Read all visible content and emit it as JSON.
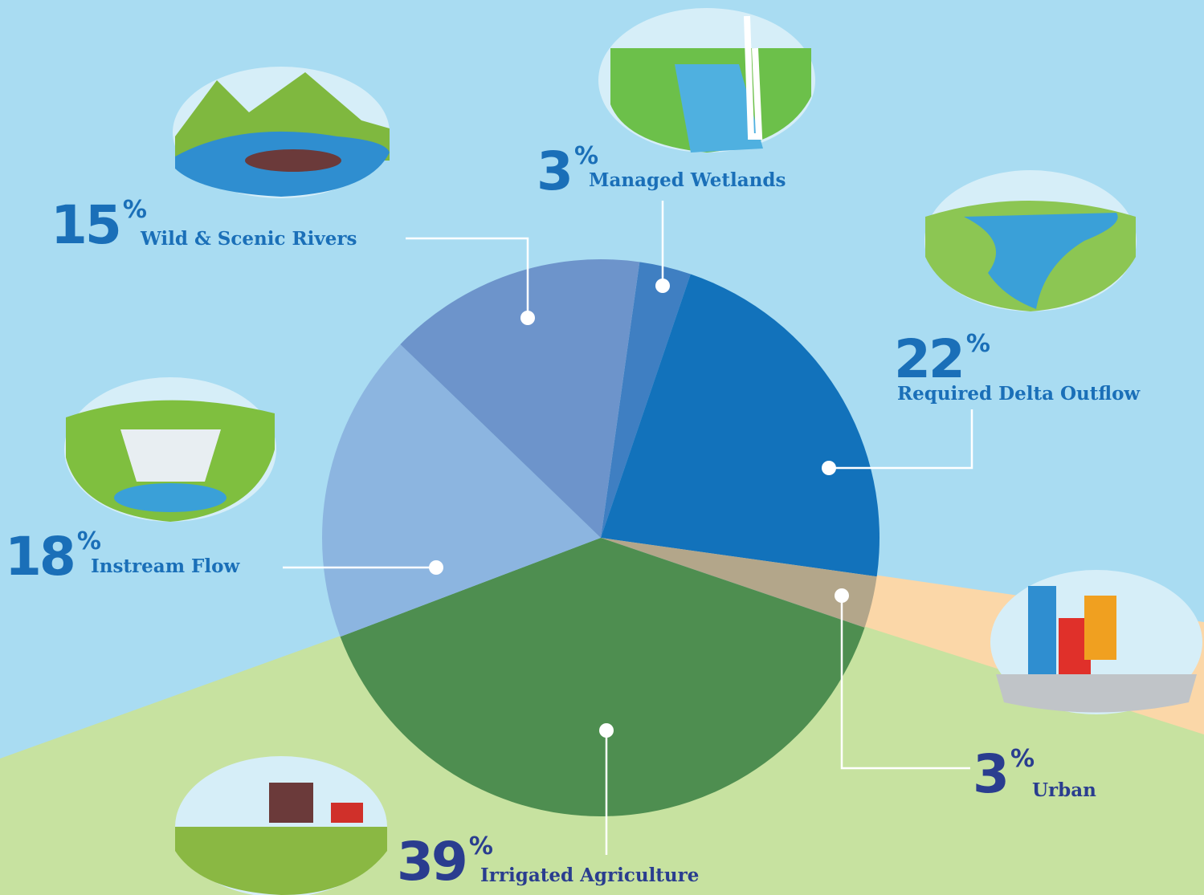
{
  "chart_data": {
    "type": "pie",
    "categories": [
      "Managed Wetlands",
      "Required Delta Outflow",
      "Urban",
      "Irrigated Agriculture",
      "Instream Flow",
      "Wild & Scenic Rivers"
    ],
    "values": [
      3,
      22,
      3,
      39,
      18,
      15
    ],
    "value_suffix": "%",
    "colors": [
      "#3f7fc2",
      "#1272bb",
      "#b3a68a",
      "#4e8e50",
      "#8cb5e0",
      "#6d94cb"
    ]
  }
}
